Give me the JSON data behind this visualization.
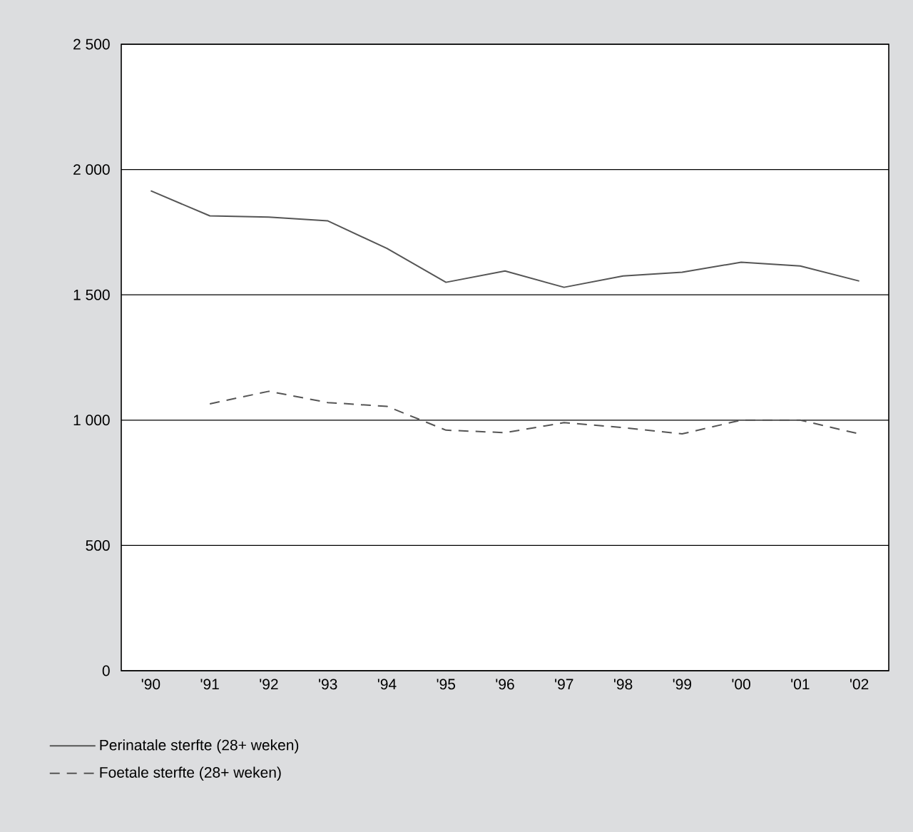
{
  "chart_data": {
    "type": "line",
    "categories": [
      "'90",
      "'91",
      "'92",
      "'93",
      "'94",
      "'95",
      "'96",
      "'97",
      "'98",
      "'99",
      "'00",
      "'01",
      "'02"
    ],
    "series": [
      {
        "name": "Perinatale sterfte (28+ weken)",
        "color": "#555555",
        "line_style": "solid",
        "values": [
          1915,
          1815,
          1810,
          1795,
          1685,
          1550,
          1595,
          1530,
          1575,
          1590,
          1630,
          1615,
          1555
        ]
      },
      {
        "name": "Foetale sterfte (28+ weken)",
        "color": "#555555",
        "line_style": "dashed",
        "values": [
          null,
          1065,
          1115,
          1070,
          1055,
          960,
          950,
          990,
          970,
          945,
          1000,
          1000,
          945
        ]
      }
    ],
    "ylim": [
      0,
      2500
    ],
    "yticks": [
      0,
      500,
      {
        "value": 1000,
        "label": "1 000"
      },
      {
        "value": 1500,
        "label": "1 500"
      },
      {
        "value": 2000,
        "label": "2 000"
      },
      {
        "value": 2500,
        "label": "2 500"
      }
    ],
    "grid": "y",
    "legend": "bottom",
    "marker": "none"
  }
}
